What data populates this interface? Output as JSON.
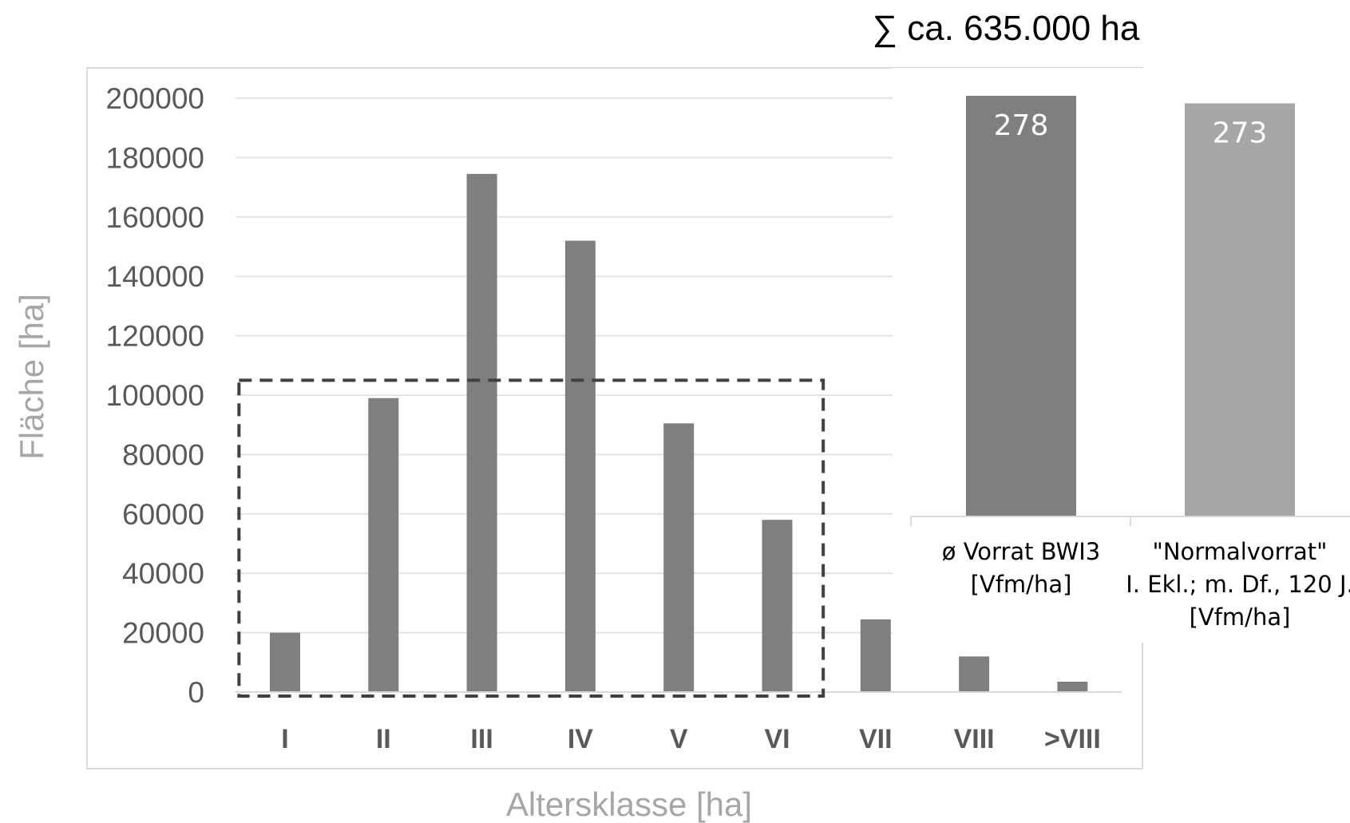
{
  "chart_data": [
    {
      "type": "bar",
      "categories": [
        "I",
        "II",
        "III",
        "IV",
        "V",
        "VI",
        "VII",
        "VIII",
        ">VIII"
      ],
      "values": [
        20000,
        99000,
        174500,
        152000,
        90500,
        58000,
        24500,
        12000,
        3500
      ],
      "ylabel": "Fläche [ha]",
      "xlabel": "Altersklasse [ha]",
      "ylim": [
        0,
        200000
      ],
      "yticks": [
        "0",
        "20000",
        "40000",
        "60000",
        "80000",
        "100000",
        "120000",
        "140000",
        "160000",
        "180000",
        "200000"
      ],
      "grid": true,
      "bar_color": "#7f7f7f",
      "highlight_box": {
        "categories": [
          "I",
          "VI"
        ],
        "range": [
          0,
          105000
        ],
        "style": "dashed"
      }
    },
    {
      "type": "bar",
      "title": "∑ ca. 635.000 ha",
      "categories": [
        "ø Vorrat BWI3 [Vfm/ha]",
        "\"Normalvorrat\" I. Ekl.; m. Df., 120 J. [Vfm/ha]"
      ],
      "category_lines": [
        [
          "ø Vorrat BWI3",
          "[Vfm/ha]"
        ],
        [
          "\"Normalvorrat\"",
          "I. Ekl.; m. Df., 120 J.",
          "[Vfm/ha]"
        ]
      ],
      "values": [
        278,
        273
      ],
      "data_labels": [
        "278",
        "273"
      ],
      "ylim": [
        0,
        278
      ],
      "colors": [
        "#7f7f7f",
        "#a6a6a6"
      ]
    }
  ]
}
